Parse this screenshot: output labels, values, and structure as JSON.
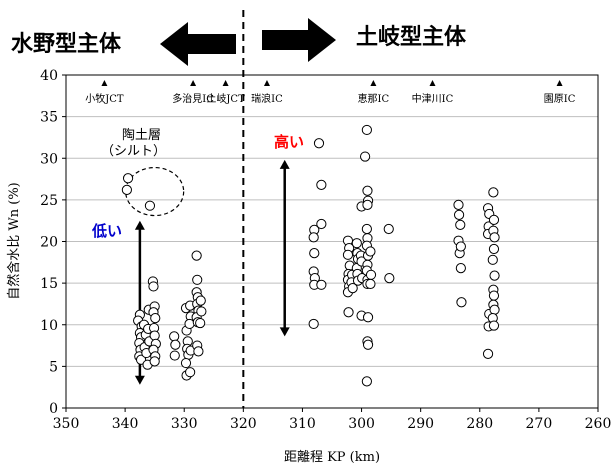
{
  "chart_data": {
    "type": "scatter",
    "xlabel": "距離程 KP (km)",
    "ylabel": "自然含水比 Wn (%)",
    "xlim": [
      350,
      260
    ],
    "ylim": [
      0,
      40
    ],
    "x_ticks": [
      350,
      340,
      330,
      320,
      310,
      300,
      290,
      280,
      270,
      260
    ],
    "y_ticks": [
      0,
      5,
      10,
      15,
      20,
      25,
      30,
      35,
      40
    ],
    "grid": "horizontal",
    "divider_kp": 320,
    "regions": {
      "left": "水野型主体",
      "right": "土岐型主体"
    },
    "landmarks": [
      {
        "kp": 343.5,
        "label": "小牧JCT"
      },
      {
        "kp": 328.5,
        "label": "多治見IC"
      },
      {
        "kp": 323,
        "label": "土岐JCT"
      },
      {
        "kp": 316,
        "label": "瑞浪IC"
      },
      {
        "kp": 298,
        "label": "恵那IC"
      },
      {
        "kp": 288,
        "label": "中津川IC"
      },
      {
        "kp": 266.5,
        "label": "園原IC"
      }
    ],
    "annotations": {
      "clay_label_1": "陶土層",
      "clay_label_2": "（シルト）",
      "low": "低い",
      "high": "高い"
    },
    "clay_circle": {
      "kp": 335,
      "wn": 26
    },
    "arrows": [
      {
        "kp": 337.5,
        "from": 22.5,
        "to": 2.8
      },
      {
        "kp": 313,
        "from": 29.8,
        "to": 8.6
      }
    ],
    "points": [
      {
        "x": 339.5,
        "y": 27.6
      },
      {
        "x": 339.7,
        "y": 26.2
      },
      {
        "x": 335.8,
        "y": 24.3
      },
      {
        "x": 337.5,
        "y": 11.2
      },
      {
        "x": 337.8,
        "y": 10.5
      },
      {
        "x": 337.2,
        "y": 9.8
      },
      {
        "x": 337.5,
        "y": 9.0
      },
      {
        "x": 337.3,
        "y": 8.5
      },
      {
        "x": 337.6,
        "y": 7.8
      },
      {
        "x": 337.4,
        "y": 7.0
      },
      {
        "x": 337.6,
        "y": 6.2
      },
      {
        "x": 337.3,
        "y": 5.8
      },
      {
        "x": 336.8,
        "y": 10.0
      },
      {
        "x": 336.5,
        "y": 8.8
      },
      {
        "x": 336.7,
        "y": 7.3
      },
      {
        "x": 336.4,
        "y": 6.6
      },
      {
        "x": 336.2,
        "y": 5.2
      },
      {
        "x": 336.0,
        "y": 11.8
      },
      {
        "x": 336.1,
        "y": 9.5
      },
      {
        "x": 335.9,
        "y": 8.0
      },
      {
        "x": 335.3,
        "y": 15.2
      },
      {
        "x": 335.2,
        "y": 14.6
      },
      {
        "x": 335.0,
        "y": 12.2
      },
      {
        "x": 335.2,
        "y": 11.5
      },
      {
        "x": 334.9,
        "y": 10.8
      },
      {
        "x": 335.1,
        "y": 9.6
      },
      {
        "x": 335.0,
        "y": 8.7
      },
      {
        "x": 334.8,
        "y": 7.7
      },
      {
        "x": 335.2,
        "y": 7.0
      },
      {
        "x": 334.9,
        "y": 6.2
      },
      {
        "x": 335.0,
        "y": 5.6
      },
      {
        "x": 331.7,
        "y": 8.6
      },
      {
        "x": 331.5,
        "y": 7.6
      },
      {
        "x": 331.6,
        "y": 6.3
      },
      {
        "x": 329.7,
        "y": 12.0
      },
      {
        "x": 329.6,
        "y": 9.3
      },
      {
        "x": 329.4,
        "y": 8.0
      },
      {
        "x": 329.5,
        "y": 7.1
      },
      {
        "x": 329.3,
        "y": 6.4
      },
      {
        "x": 329.7,
        "y": 5.4
      },
      {
        "x": 329.6,
        "y": 3.9
      },
      {
        "x": 329.0,
        "y": 12.3
      },
      {
        "x": 328.9,
        "y": 11.0
      },
      {
        "x": 329.1,
        "y": 10.1
      },
      {
        "x": 328.9,
        "y": 6.9
      },
      {
        "x": 329.0,
        "y": 4.3
      },
      {
        "x": 327.9,
        "y": 18.3
      },
      {
        "x": 327.8,
        "y": 15.4
      },
      {
        "x": 327.9,
        "y": 13.9
      },
      {
        "x": 327.7,
        "y": 13.3
      },
      {
        "x": 327.8,
        "y": 12.5
      },
      {
        "x": 327.6,
        "y": 11.7
      },
      {
        "x": 327.9,
        "y": 10.9
      },
      {
        "x": 327.7,
        "y": 10.3
      },
      {
        "x": 327.8,
        "y": 7.5
      },
      {
        "x": 327.6,
        "y": 6.8
      },
      {
        "x": 327.2,
        "y": 12.9
      },
      {
        "x": 327.1,
        "y": 11.6
      },
      {
        "x": 327.3,
        "y": 10.2
      },
      {
        "x": 307.2,
        "y": 31.8
      },
      {
        "x": 306.8,
        "y": 26.8
      },
      {
        "x": 306.8,
        "y": 22.1
      },
      {
        "x": 308.0,
        "y": 21.4
      },
      {
        "x": 308.1,
        "y": 20.5
      },
      {
        "x": 308.0,
        "y": 18.6
      },
      {
        "x": 308.1,
        "y": 16.4
      },
      {
        "x": 307.9,
        "y": 15.6
      },
      {
        "x": 308.0,
        "y": 14.8
      },
      {
        "x": 306.8,
        "y": 14.8
      },
      {
        "x": 308.1,
        "y": 10.1
      },
      {
        "x": 302.3,
        "y": 20.1
      },
      {
        "x": 302.1,
        "y": 19.2
      },
      {
        "x": 302.3,
        "y": 18.4
      },
      {
        "x": 302.0,
        "y": 17.1
      },
      {
        "x": 302.2,
        "y": 16.1
      },
      {
        "x": 302.3,
        "y": 15.4
      },
      {
        "x": 302.1,
        "y": 14.6
      },
      {
        "x": 302.3,
        "y": 13.9
      },
      {
        "x": 302.2,
        "y": 11.5
      },
      {
        "x": 301.6,
        "y": 16.0
      },
      {
        "x": 301.7,
        "y": 15.1
      },
      {
        "x": 301.5,
        "y": 14.4
      },
      {
        "x": 300.8,
        "y": 19.8
      },
      {
        "x": 300.7,
        "y": 18.6
      },
      {
        "x": 300.6,
        "y": 17.9
      },
      {
        "x": 300.8,
        "y": 16.8
      },
      {
        "x": 300.7,
        "y": 16.1
      },
      {
        "x": 300.6,
        "y": 15.3
      },
      {
        "x": 300.0,
        "y": 24.2
      },
      {
        "x": 300.1,
        "y": 18.3
      },
      {
        "x": 300.0,
        "y": 17.6
      },
      {
        "x": 299.9,
        "y": 15.6
      },
      {
        "x": 300.0,
        "y": 11.1
      },
      {
        "x": 299.1,
        "y": 33.4
      },
      {
        "x": 299.4,
        "y": 30.2
      },
      {
        "x": 299.0,
        "y": 26.1
      },
      {
        "x": 298.9,
        "y": 24.9
      },
      {
        "x": 299.0,
        "y": 24.4
      },
      {
        "x": 299.1,
        "y": 21.5
      },
      {
        "x": 299.0,
        "y": 20.4
      },
      {
        "x": 299.1,
        "y": 19.5
      },
      {
        "x": 298.9,
        "y": 18.3
      },
      {
        "x": 299.0,
        "y": 17.2
      },
      {
        "x": 299.1,
        "y": 16.5
      },
      {
        "x": 299.0,
        "y": 15.4
      },
      {
        "x": 299.0,
        "y": 14.9
      },
      {
        "x": 298.9,
        "y": 10.9
      },
      {
        "x": 299.0,
        "y": 8.0
      },
      {
        "x": 298.9,
        "y": 7.6
      },
      {
        "x": 299.1,
        "y": 3.2
      },
      {
        "x": 298.5,
        "y": 18.8
      },
      {
        "x": 298.4,
        "y": 16.0
      },
      {
        "x": 298.5,
        "y": 14.9
      },
      {
        "x": 295.4,
        "y": 21.5
      },
      {
        "x": 295.3,
        "y": 15.6
      },
      {
        "x": 283.6,
        "y": 24.4
      },
      {
        "x": 283.5,
        "y": 23.2
      },
      {
        "x": 283.3,
        "y": 22.0
      },
      {
        "x": 283.6,
        "y": 20.1
      },
      {
        "x": 283.4,
        "y": 18.6
      },
      {
        "x": 283.2,
        "y": 16.8
      },
      {
        "x": 283.1,
        "y": 12.7
      },
      {
        "x": 283.2,
        "y": 19.4
      },
      {
        "x": 278.6,
        "y": 24.0
      },
      {
        "x": 278.4,
        "y": 23.3
      },
      {
        "x": 278.5,
        "y": 21.8
      },
      {
        "x": 278.6,
        "y": 20.9
      },
      {
        "x": 278.4,
        "y": 11.3
      },
      {
        "x": 278.5,
        "y": 9.8
      },
      {
        "x": 278.6,
        "y": 6.5
      },
      {
        "x": 277.7,
        "y": 25.9
      },
      {
        "x": 277.6,
        "y": 22.6
      },
      {
        "x": 277.7,
        "y": 21.3
      },
      {
        "x": 277.5,
        "y": 20.5
      },
      {
        "x": 277.6,
        "y": 19.1
      },
      {
        "x": 277.8,
        "y": 17.8
      },
      {
        "x": 277.5,
        "y": 15.9
      },
      {
        "x": 277.7,
        "y": 14.2
      },
      {
        "x": 277.6,
        "y": 13.5
      },
      {
        "x": 277.7,
        "y": 12.4
      },
      {
        "x": 277.5,
        "y": 11.8
      },
      {
        "x": 277.8,
        "y": 10.8
      },
      {
        "x": 277.6,
        "y": 9.9
      }
    ]
  }
}
